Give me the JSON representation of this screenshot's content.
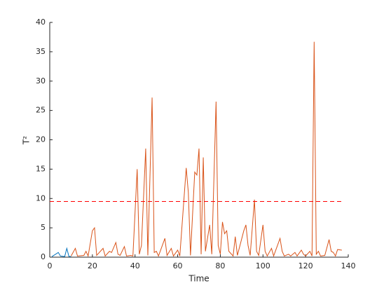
{
  "chart_data": {
    "type": "line",
    "x_label": "Time",
    "y_label": "T²",
    "xlim": [
      0,
      140
    ],
    "ylim": [
      0,
      40
    ],
    "xticks": [
      0,
      20,
      40,
      60,
      80,
      100,
      120,
      140
    ],
    "yticks": [
      0,
      5,
      10,
      15,
      20,
      25,
      30,
      35,
      40
    ],
    "series": [
      {
        "color": "#0072bd",
        "x": [
          1,
          4,
          5,
          7,
          8,
          9,
          10
        ],
        "values": [
          0.1,
          0.8,
          0.2,
          0.1,
          1.5,
          0.1,
          0.1
        ]
      },
      {
        "color": "#d95319",
        "x": [
          10,
          12,
          13,
          16,
          17,
          18,
          20,
          21,
          22,
          25,
          26,
          28,
          29,
          31,
          32,
          33,
          35,
          36,
          38,
          39,
          41,
          42,
          43,
          45,
          46,
          48,
          49,
          50,
          51,
          54,
          55,
          57,
          58,
          60,
          61,
          64,
          65,
          66,
          68,
          69,
          70,
          71,
          72,
          73,
          75,
          76,
          78,
          79,
          80,
          81,
          82,
          83,
          84,
          86,
          87,
          88,
          91,
          92,
          93,
          94,
          96,
          97,
          98,
          100,
          101,
          102,
          104,
          105,
          108,
          109,
          110,
          112,
          113,
          115,
          116,
          118,
          119,
          120,
          122,
          123,
          124,
          125,
          126,
          127,
          129,
          131,
          132,
          133,
          134,
          135,
          137
        ],
        "values": [
          0.2,
          1.5,
          0.2,
          0.3,
          1,
          0.2,
          4.5,
          5,
          0.3,
          1.5,
          0.2,
          1,
          0.8,
          2.5,
          0.5,
          0.3,
          1.8,
          0.2,
          0.3,
          0.2,
          15,
          0.5,
          2,
          18.5,
          0.3,
          27.2,
          0.8,
          1,
          0.2,
          3.2,
          0.3,
          1.5,
          0.2,
          1.2,
          0.2,
          15.2,
          11,
          0.3,
          14.5,
          14,
          18.5,
          0.5,
          17,
          1,
          5.5,
          0.5,
          26.5,
          2,
          0.5,
          6,
          4,
          4.5,
          1,
          0.2,
          3.5,
          0.3,
          4.5,
          5.5,
          2,
          0.3,
          9.8,
          1,
          0.3,
          5.5,
          1,
          0.2,
          1.5,
          0.2,
          3.2,
          1,
          0.2,
          0.5,
          0.2,
          0.8,
          0.2,
          1.2,
          0.5,
          0.2,
          1,
          0.2,
          36.7,
          0.5,
          1,
          0.2,
          0.3,
          3,
          1,
          0.8,
          0.2,
          1.3,
          1.2
        ]
      }
    ],
    "reference_line": {
      "value": 9.5,
      "x": [
        0,
        137
      ],
      "color": "#ff0000",
      "style": "dashed"
    }
  }
}
